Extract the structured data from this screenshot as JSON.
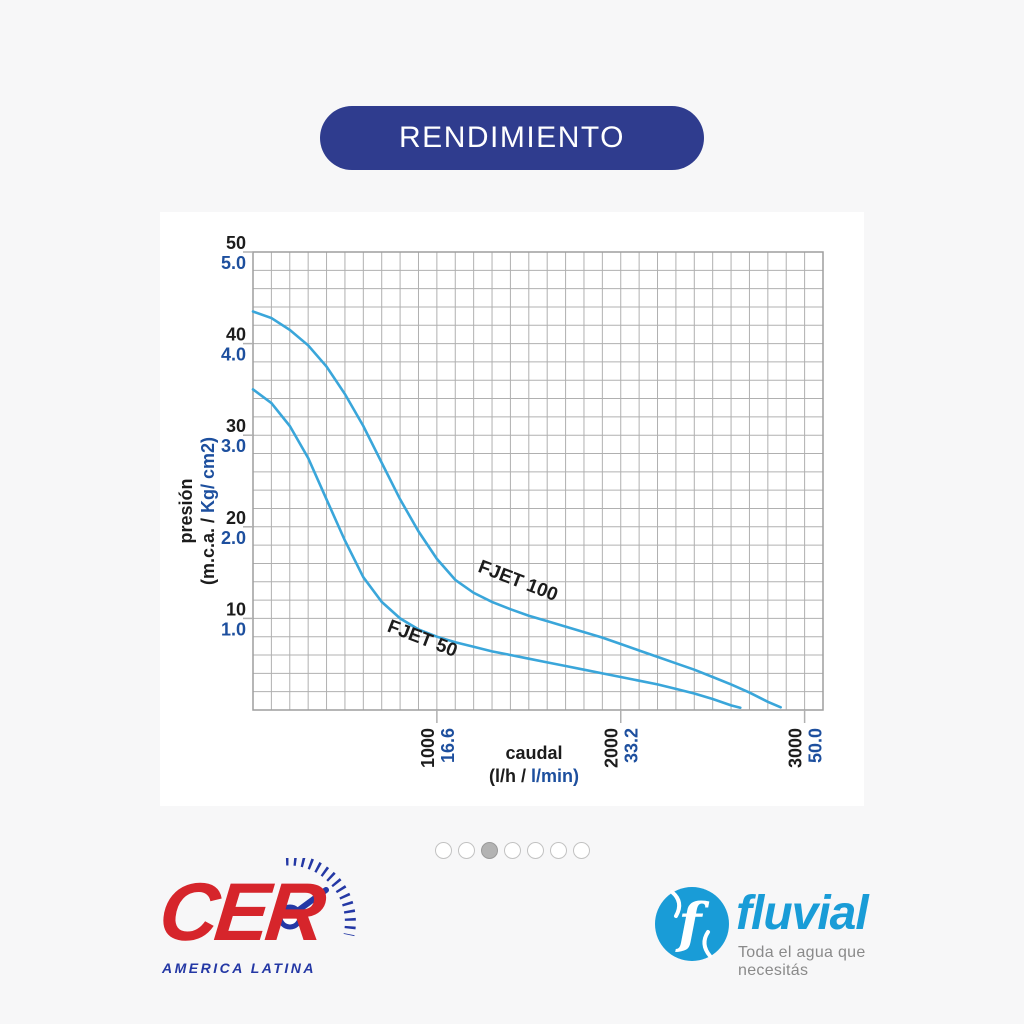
{
  "page": {
    "background": "#f7f7f8",
    "card_background": "#ffffff"
  },
  "header": {
    "title": "RENDIMIENTO",
    "pill_color": "#2f3c8e",
    "text_color": "#ffffff"
  },
  "chart_data": {
    "type": "line",
    "title": "",
    "grid": true,
    "colors": {
      "curve": "#3aa6da",
      "grid": "#b0b0b0",
      "frame": "#9e9e9e",
      "text_black": "#1c1c1c",
      "text_blue": "#1d4f9e"
    },
    "y_axis": {
      "title_line1": "presión",
      "title_line2_black": "(m.c.a. / ",
      "title_line2_blue": "Kg/ cm2)",
      "range": [
        0,
        50
      ],
      "cell": 2,
      "tick_values": [
        50,
        40,
        30,
        20,
        10
      ],
      "ticks_primary": [
        "50",
        "40",
        "30",
        "20",
        "10"
      ],
      "ticks_secondary": [
        "5.0",
        "4.0",
        "3.0",
        "2.0",
        "1.0"
      ]
    },
    "x_axis": {
      "title_line1": "caudal",
      "title_line2_black": "(l/h / ",
      "title_line2_blue": "l/min)",
      "range": [
        0,
        3100
      ],
      "cell": 100,
      "tick_values": [
        1000,
        2000,
        3000
      ],
      "ticks_primary": [
        "1000",
        "2000",
        "3000"
      ],
      "ticks_secondary": [
        "16.6",
        "33.2",
        "50.0"
      ]
    },
    "series": [
      {
        "name": "FJET 100",
        "label_pos": [
          1430,
          13.5
        ],
        "label_rotation": 21,
        "points": [
          [
            0,
            43.5
          ],
          [
            100,
            42.8
          ],
          [
            200,
            41.5
          ],
          [
            300,
            39.8
          ],
          [
            400,
            37.5
          ],
          [
            500,
            34.5
          ],
          [
            600,
            31
          ],
          [
            700,
            27
          ],
          [
            800,
            23
          ],
          [
            900,
            19.5
          ],
          [
            1000,
            16.5
          ],
          [
            1100,
            14.2
          ],
          [
            1200,
            12.8
          ],
          [
            1300,
            11.8
          ],
          [
            1400,
            11
          ],
          [
            1500,
            10.3
          ],
          [
            1600,
            9.7
          ],
          [
            1700,
            9.1
          ],
          [
            1800,
            8.5
          ],
          [
            1900,
            7.9
          ],
          [
            2000,
            7.2
          ],
          [
            2100,
            6.5
          ],
          [
            2200,
            5.8
          ],
          [
            2300,
            5.1
          ],
          [
            2400,
            4.4
          ],
          [
            2500,
            3.6
          ],
          [
            2600,
            2.8
          ],
          [
            2700,
            1.9
          ],
          [
            2800,
            0.9
          ],
          [
            2870,
            0.3
          ]
        ]
      },
      {
        "name": "FJET 50",
        "label_pos": [
          910,
          7.2
        ],
        "label_rotation": 21,
        "points": [
          [
            0,
            35
          ],
          [
            100,
            33.5
          ],
          [
            200,
            31
          ],
          [
            300,
            27.5
          ],
          [
            400,
            23
          ],
          [
            500,
            18.5
          ],
          [
            600,
            14.5
          ],
          [
            700,
            11.8
          ],
          [
            800,
            10
          ],
          [
            900,
            8.8
          ],
          [
            1000,
            8
          ],
          [
            1100,
            7.4
          ],
          [
            1200,
            6.9
          ],
          [
            1300,
            6.4
          ],
          [
            1400,
            6
          ],
          [
            1500,
            5.6
          ],
          [
            1600,
            5.2
          ],
          [
            1700,
            4.8
          ],
          [
            1800,
            4.4
          ],
          [
            1900,
            4
          ],
          [
            2000,
            3.6
          ],
          [
            2100,
            3.2
          ],
          [
            2200,
            2.8
          ],
          [
            2300,
            2.3
          ],
          [
            2400,
            1.8
          ],
          [
            2500,
            1.2
          ],
          [
            2600,
            0.5
          ],
          [
            2650,
            0.25
          ]
        ]
      }
    ]
  },
  "carousel": {
    "count": 7,
    "active_index": 2
  },
  "footer": {
    "cer": {
      "word": "CER",
      "subtitle": "AMERICA LATINA",
      "red": "#d6252b",
      "blue": "#2438a5"
    },
    "fluvial": {
      "word": "fluvial",
      "tagline": "Toda el agua que necesitás",
      "blue": "#199cd7",
      "tagline_color": "#8a8a8a"
    }
  }
}
